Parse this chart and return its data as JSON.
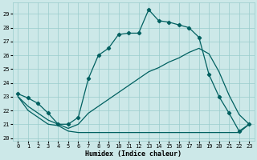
{
  "bg_color": "#cce8e8",
  "grid_color": "#99cccc",
  "line_color": "#006060",
  "xlabel": "Humidex (Indice chaleur)",
  "xlim": [
    -0.5,
    23.5
  ],
  "ylim": [
    19.8,
    29.8
  ],
  "xticks": [
    0,
    1,
    2,
    3,
    4,
    5,
    6,
    7,
    8,
    9,
    10,
    11,
    12,
    13,
    14,
    15,
    16,
    17,
    18,
    19,
    20,
    21,
    22,
    23
  ],
  "yticks": [
    20,
    21,
    22,
    23,
    24,
    25,
    26,
    27,
    28,
    29
  ],
  "top_x": [
    0,
    1,
    2,
    3,
    4,
    5,
    6,
    7,
    8,
    9,
    10,
    11,
    12,
    13,
    14,
    15,
    16,
    17,
    18,
    19,
    20,
    21,
    22,
    23
  ],
  "top_y": [
    23.2,
    22.9,
    22.5,
    21.8,
    21.0,
    21.0,
    21.5,
    24.3,
    26.0,
    26.5,
    27.5,
    27.6,
    27.6,
    29.3,
    28.5,
    28.4,
    28.2,
    28.0,
    27.3,
    24.6,
    23.0,
    21.8,
    20.5,
    21.0
  ],
  "mid_x": [
    0,
    1,
    2,
    3,
    4,
    5,
    6,
    7,
    8,
    9,
    10,
    11,
    12,
    13,
    14,
    15,
    16,
    17,
    18,
    19,
    20,
    21,
    22,
    23
  ],
  "mid_y": [
    23.0,
    22.3,
    21.8,
    21.3,
    21.0,
    20.7,
    21.0,
    21.8,
    22.3,
    22.8,
    23.3,
    23.8,
    24.3,
    24.8,
    25.1,
    25.5,
    25.8,
    26.2,
    26.5,
    26.1,
    24.8,
    23.1,
    21.7,
    21.0
  ],
  "bot_x": [
    0,
    1,
    2,
    3,
    4,
    5,
    6,
    7,
    8,
    9,
    10,
    11,
    12,
    13,
    14,
    15,
    16,
    17,
    18,
    19,
    20,
    21,
    22,
    23
  ],
  "bot_y": [
    23.0,
    22.0,
    21.5,
    21.0,
    20.9,
    20.5,
    20.4,
    20.4,
    20.4,
    20.4,
    20.4,
    20.4,
    20.4,
    20.4,
    20.4,
    20.4,
    20.4,
    20.4,
    20.4,
    20.4,
    20.4,
    20.4,
    20.4,
    21.0
  ],
  "tick_fontsize": 5,
  "xlabel_fontsize": 6,
  "lw": 0.9,
  "marker_size": 2.2
}
